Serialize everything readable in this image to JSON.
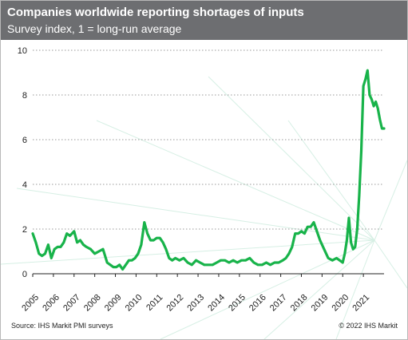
{
  "chart_data": {
    "type": "line",
    "title": "Companies worldwide reporting shortages of inputs",
    "subtitle": "Survey index, 1 = long-run average",
    "ylim": [
      0,
      10
    ],
    "y_ticks": [
      0,
      2,
      4,
      6,
      8,
      10
    ],
    "x_tick_labels": [
      "2005",
      "2006",
      "2007",
      "2008",
      "2009",
      "2010",
      "2011",
      "2012",
      "2013",
      "2014",
      "2015",
      "2016",
      "2017",
      "2018",
      "2019",
      "2020",
      "2021"
    ],
    "grid": "horizontal dotted",
    "line_color": "#18b34a",
    "series": [
      {
        "x": [
          2005.0,
          2005.15,
          2005.3,
          2005.45,
          2005.6,
          2005.75,
          2005.9,
          2006.05,
          2006.2,
          2006.35,
          2006.5,
          2006.65,
          2006.8,
          2007.0,
          2007.15,
          2007.3,
          2007.45,
          2007.6,
          2007.8,
          2008.0,
          2008.2,
          2008.4,
          2008.6,
          2008.75,
          2008.9,
          2009.05,
          2009.2,
          2009.35,
          2009.5,
          2009.65,
          2009.8,
          2009.95,
          2010.1,
          2010.25,
          2010.4,
          2010.55,
          2010.7,
          2010.85,
          2011.0,
          2011.15,
          2011.3,
          2011.45,
          2011.6,
          2011.75,
          2011.9,
          2012.1,
          2012.3,
          2012.5,
          2012.7,
          2012.9,
          2013.1,
          2013.3,
          2013.5,
          2013.7,
          2013.9,
          2014.1,
          2014.3,
          2014.5,
          2014.7,
          2014.9,
          2015.1,
          2015.3,
          2015.5,
          2015.7,
          2015.9,
          2016.1,
          2016.3,
          2016.5,
          2016.7,
          2016.9,
          2017.1,
          2017.25,
          2017.4,
          2017.55,
          2017.7,
          2017.85,
          2018.0,
          2018.15,
          2018.3,
          2018.45,
          2018.6,
          2018.75,
          2018.9,
          2019.1,
          2019.3,
          2019.5,
          2019.7,
          2019.85,
          2020.0,
          2020.1,
          2020.2,
          2020.3,
          2020.4,
          2020.5,
          2020.6,
          2020.7,
          2020.8,
          2020.9,
          2021.0,
          2021.1,
          2021.2,
          2021.3,
          2021.4,
          2021.5,
          2021.6,
          2021.7,
          2021.8,
          2021.9,
          2022.0
        ],
        "values": [
          1.8,
          1.4,
          0.9,
          0.8,
          0.9,
          1.3,
          0.7,
          1.1,
          1.2,
          1.2,
          1.4,
          1.8,
          1.7,
          1.9,
          1.4,
          1.5,
          1.3,
          1.2,
          1.1,
          0.9,
          1.0,
          1.1,
          0.5,
          0.4,
          0.3,
          0.3,
          0.4,
          0.2,
          0.4,
          0.6,
          0.6,
          0.7,
          0.9,
          1.3,
          2.3,
          1.8,
          1.5,
          1.5,
          1.6,
          1.6,
          1.4,
          1.1,
          0.7,
          0.6,
          0.7,
          0.6,
          0.7,
          0.5,
          0.4,
          0.6,
          0.5,
          0.4,
          0.4,
          0.4,
          0.5,
          0.6,
          0.6,
          0.5,
          0.6,
          0.5,
          0.6,
          0.6,
          0.7,
          0.5,
          0.4,
          0.4,
          0.5,
          0.4,
          0.5,
          0.5,
          0.6,
          0.7,
          0.9,
          1.2,
          1.8,
          1.8,
          1.9,
          1.8,
          2.1,
          2.1,
          2.3,
          1.9,
          1.5,
          1.1,
          0.7,
          0.6,
          0.7,
          0.6,
          0.5,
          0.9,
          1.5,
          2.5,
          1.4,
          1.1,
          1.2,
          2.0,
          3.5,
          5.5,
          8.4,
          8.7,
          9.1,
          8.0,
          7.8,
          7.5,
          7.7,
          7.4,
          6.9,
          6.5,
          6.5
        ]
      }
    ]
  },
  "footer": {
    "source": "Source: IHS Markit PMI surveys",
    "copyright": "© 2022 IHS Markit"
  }
}
